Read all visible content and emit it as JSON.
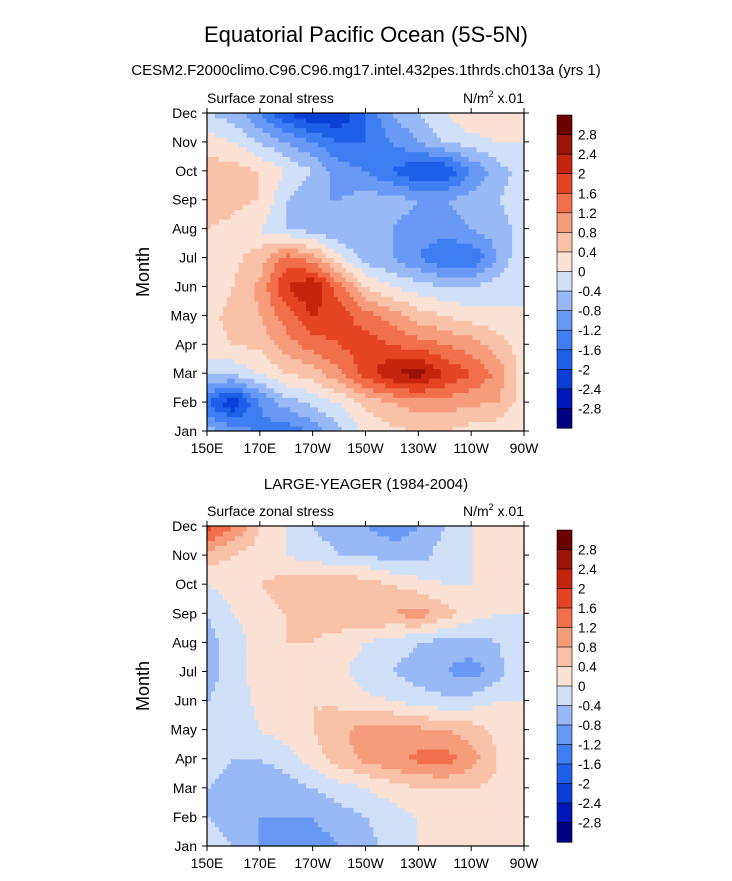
{
  "figure": {
    "title": "Equatorial Pacific Ocean (5S-5N)",
    "subtitle": "CESM2.F2000climo.C96.C96.mg17.intel.432pes.1thrds.ch013a (yrs 1)"
  },
  "chart_data": [
    {
      "type": "heatmap",
      "panel_title": "",
      "left_string": "Surface zonal stress",
      "units": "N/m",
      "units_sup": "2",
      "units_suffix": " x.01",
      "ylabel": "Month",
      "xlabel": "",
      "x_ticks": [
        "150E",
        "170E",
        "170W",
        "150W",
        "130W",
        "110W",
        "90W"
      ],
      "y_ticks": [
        "Jan",
        "Feb",
        "Mar",
        "Apr",
        "May",
        "Jun",
        "Jul",
        "Aug",
        "Sep",
        "Oct",
        "Nov",
        "Dec"
      ],
      "colorbar_labels": [
        "2.8",
        "2.4",
        "2",
        "1.6",
        "1.2",
        "0.8",
        "0.4",
        "0",
        "-0.4",
        "-0.8",
        "-1.2",
        "-1.6",
        "-2",
        "-2.4",
        "-2.8"
      ],
      "longitudes": [
        150,
        160,
        170,
        180,
        190,
        200,
        210,
        220,
        230,
        240,
        250,
        260,
        270
      ],
      "values": [
        [
          -0.6,
          -0.9,
          -1.3,
          -1.5,
          -1.1,
          -0.5,
          0.1,
          0.3,
          0.4,
          0.4,
          0.2,
          0.1,
          0.0
        ],
        [
          -1.6,
          -2.4,
          -1.2,
          -0.6,
          -0.3,
          0.0,
          0.5,
          0.8,
          1.0,
          1.0,
          0.9,
          0.8,
          0.2
        ],
        [
          -0.4,
          -0.3,
          0.0,
          0.4,
          0.6,
          1.1,
          1.8,
          2.4,
          2.6,
          2.0,
          1.6,
          1.1,
          0.2
        ],
        [
          0.3,
          0.4,
          0.5,
          1.0,
          1.4,
          1.6,
          1.8,
          1.6,
          1.4,
          1.2,
          1.0,
          0.6,
          0.2
        ],
        [
          0.3,
          0.5,
          0.8,
          1.4,
          2.0,
          1.8,
          1.4,
          1.0,
          0.6,
          0.4,
          0.2,
          0.1,
          0.0
        ],
        [
          0.2,
          0.4,
          0.9,
          2.0,
          2.4,
          1.4,
          0.4,
          0.0,
          -0.2,
          -0.4,
          -0.4,
          -0.2,
          0.0
        ],
        [
          0.2,
          0.3,
          0.6,
          1.4,
          1.0,
          0.1,
          -0.6,
          -0.8,
          -1.2,
          -1.6,
          -1.6,
          -0.8,
          0.0
        ],
        [
          0.4,
          0.3,
          0.0,
          -0.4,
          -0.6,
          -0.8,
          -0.8,
          -0.8,
          -1.0,
          -1.0,
          -0.8,
          -0.6,
          -0.2
        ],
        [
          0.6,
          0.5,
          0.4,
          -0.4,
          -0.8,
          -0.8,
          -0.6,
          -0.6,
          -0.8,
          -0.8,
          -0.6,
          -0.4,
          -0.2
        ],
        [
          0.6,
          0.6,
          0.4,
          0.0,
          -0.4,
          -1.0,
          -1.2,
          -1.6,
          -2.0,
          -2.0,
          -1.2,
          -0.6,
          -0.2
        ],
        [
          0.2,
          0.0,
          -0.4,
          -0.8,
          -1.2,
          -1.6,
          -1.6,
          -1.2,
          -0.8,
          -0.4,
          -0.2,
          0.0,
          0.0
        ],
        [
          -0.4,
          -0.6,
          -1.2,
          -2.0,
          -2.4,
          -2.4,
          -1.6,
          -0.8,
          -0.4,
          0.0,
          0.4,
          0.4,
          0.0
        ]
      ]
    },
    {
      "type": "heatmap",
      "panel_title": "LARGE-YEAGER (1984-2004)",
      "left_string": "Surface zonal stress",
      "units": "N/m",
      "units_sup": "2",
      "units_suffix": " x.01",
      "ylabel": "Month",
      "xlabel": "",
      "x_ticks": [
        "150E",
        "170E",
        "170W",
        "150W",
        "130W",
        "110W",
        "90W"
      ],
      "y_ticks": [
        "Jan",
        "Feb",
        "Mar",
        "Apr",
        "May",
        "Jun",
        "Jul",
        "Aug",
        "Sep",
        "Oct",
        "Nov",
        "Dec"
      ],
      "colorbar_labels": [
        "2.8",
        "2.4",
        "2",
        "1.6",
        "1.2",
        "0.8",
        "0.4",
        "0",
        "-0.4",
        "-0.8",
        "-1.2",
        "-1.6",
        "-2",
        "-2.4",
        "-2.8"
      ],
      "longitudes": [
        150,
        160,
        170,
        180,
        190,
        200,
        210,
        220,
        230,
        240,
        250,
        260,
        270
      ],
      "values": [
        [
          -0.2,
          -0.4,
          -0.8,
          -1.0,
          -1.0,
          -0.8,
          -0.6,
          -0.2,
          0.0,
          0.0,
          0.0,
          0.1,
          0.0
        ],
        [
          -0.4,
          -0.6,
          -0.8,
          -0.8,
          -0.8,
          -0.6,
          -0.4,
          -0.2,
          0.0,
          0.1,
          0.1,
          0.1,
          0.0
        ],
        [
          -0.4,
          -0.6,
          -0.8,
          -0.6,
          -0.4,
          -0.2,
          0.0,
          0.2,
          0.4,
          0.4,
          0.4,
          0.3,
          0.0
        ],
        [
          -0.2,
          -0.4,
          -0.4,
          -0.2,
          0.2,
          0.6,
          0.9,
          1.1,
          1.3,
          1.4,
          1.0,
          0.4,
          0.0
        ],
        [
          -0.2,
          -0.2,
          0.0,
          0.2,
          0.4,
          0.7,
          1.0,
          1.0,
          0.9,
          0.8,
          0.6,
          0.3,
          0.0
        ],
        [
          -0.4,
          -0.2,
          0.1,
          0.2,
          0.4,
          0.3,
          0.1,
          0.0,
          -0.2,
          -0.3,
          -0.2,
          0.0,
          0.0
        ],
        [
          -0.6,
          -0.2,
          0.2,
          0.4,
          0.3,
          0.1,
          -0.2,
          -0.4,
          -0.6,
          -0.8,
          -1.0,
          -0.6,
          0.0
        ],
        [
          -0.6,
          -0.2,
          0.2,
          0.4,
          0.4,
          0.2,
          0.0,
          -0.2,
          -0.4,
          -0.6,
          -0.6,
          -0.4,
          0.0
        ],
        [
          -0.4,
          0.0,
          0.2,
          0.4,
          0.6,
          0.7,
          0.8,
          0.8,
          1.0,
          0.6,
          0.2,
          0.0,
          0.0
        ],
        [
          0.0,
          0.2,
          0.4,
          0.6,
          0.8,
          0.8,
          0.6,
          0.4,
          0.2,
          0.0,
          0.0,
          0.0,
          0.0
        ],
        [
          0.6,
          0.4,
          0.2,
          0.0,
          -0.2,
          -0.4,
          -0.4,
          -0.6,
          -0.6,
          -0.2,
          0.0,
          0.0,
          0.0
        ],
        [
          1.8,
          1.2,
          0.4,
          0.0,
          -0.4,
          -0.6,
          -0.8,
          -1.0,
          -0.8,
          -0.4,
          0.0,
          0.1,
          0.0
        ]
      ]
    }
  ],
  "palette": {
    "levels": [
      -2.8,
      -2.4,
      -2.0,
      -1.6,
      -1.2,
      -0.8,
      -0.4,
      0,
      0.4,
      0.8,
      1.2,
      1.6,
      2.0,
      2.4,
      2.8
    ],
    "colors": [
      "#000080",
      "#0018b8",
      "#0a3fd6",
      "#1f5fe8",
      "#3e7df2",
      "#6899f5",
      "#99b8f6",
      "#d0e0f8",
      "#fbe1d3",
      "#f9c2a8",
      "#f69c7a",
      "#f26f4c",
      "#e44424",
      "#c4250c",
      "#9b1206",
      "#6b0000"
    ]
  }
}
